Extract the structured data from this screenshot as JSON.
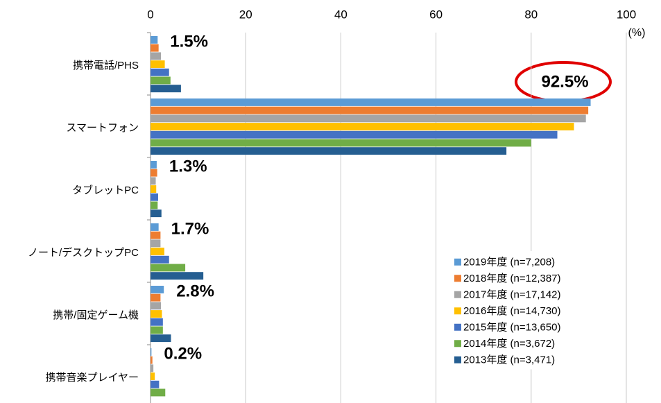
{
  "chart_data": {
    "type": "hbar",
    "x_label": "(%)",
    "categories": [
      "携帯電話/PHS",
      "スマートフォン",
      "タブレットPC",
      "ノート/デスクトップPC",
      "携帯/固定ゲーム機",
      "携帯音楽プレイヤー"
    ],
    "series": [
      {
        "name": "2019年度 (n=7,208)",
        "color": "#5b9bd5",
        "values": [
          1.5,
          92.5,
          1.3,
          1.7,
          2.8,
          0.2
        ],
        "value_labels": [
          "1.5%",
          "92.5%",
          "1.3%",
          "1.7%",
          "2.8%",
          "0.2%"
        ]
      },
      {
        "name": "2018年度 (n=12,387)",
        "color": "#ed7d31",
        "values": [
          1.7,
          92.0,
          1.4,
          2.1,
          2.1,
          0.4
        ]
      },
      {
        "name": "2017年度 (n=17,142)",
        "color": "#a5a5a5",
        "values": [
          2.2,
          91.5,
          1.1,
          2.1,
          2.2,
          0.6
        ]
      },
      {
        "name": "2016年度 (n=14,730)",
        "color": "#ffc000",
        "values": [
          3.0,
          89.0,
          1.2,
          2.9,
          2.4,
          0.9
        ]
      },
      {
        "name": "2015年度 (n=13,650)",
        "color": "#4472c4",
        "values": [
          3.9,
          85.5,
          1.6,
          3.9,
          2.6,
          1.8
        ]
      },
      {
        "name": "2014年度 (n=3,672)",
        "color": "#70ad47",
        "values": [
          4.2,
          80.0,
          1.5,
          7.3,
          2.6,
          3.1
        ]
      },
      {
        "name": "2013年度 (n=3,471)",
        "color": "#255e91",
        "values": [
          6.4,
          74.8,
          2.3,
          11.1,
          4.3,
          null
        ]
      }
    ],
    "xlim": [
      0,
      100
    ],
    "xticks": [
      0,
      20,
      40,
      60,
      80,
      100
    ],
    "grid": true,
    "legend": "lower right"
  }
}
